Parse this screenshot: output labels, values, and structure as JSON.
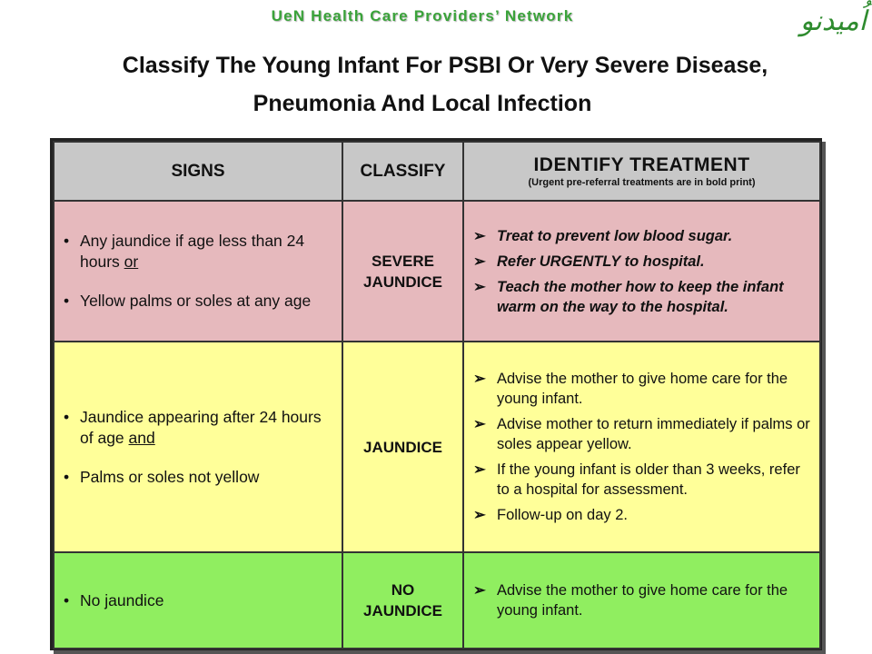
{
  "header": {
    "org": "UeN Health Care Providers’ Network",
    "logo_text": "اُمیدنو"
  },
  "title": {
    "line1": "Classify The Young Infant For PSBI Or Very Severe Disease,",
    "line2": "Pneumonia And Local Infection"
  },
  "table": {
    "headers": {
      "signs": "SIGNS",
      "classify": "CLASSIFY",
      "treatment": "IDENTIFY TREATMENT",
      "treatment_note": "(Urgent pre-referral treatments are in bold print)"
    },
    "rows": [
      {
        "color": "#e6b9bd",
        "signs": [
          {
            "text": "Any jaundice if age less than 24 hours",
            "conj": "or"
          },
          {
            "text": "Yellow palms or soles at any age",
            "conj": ""
          }
        ],
        "classify": [
          "SEVERE",
          "JAUNDICE"
        ],
        "treatment": [
          "Treat to prevent low blood sugar.",
          "Refer URGENTLY to hospital.",
          "Teach the mother how to keep the infant warm on the way to the hospital."
        ]
      },
      {
        "color": "#ffff99",
        "signs": [
          {
            "text": "Jaundice appearing after 24 hours of age",
            "conj": "and"
          },
          {
            "text": "Palms or soles not yellow",
            "conj": ""
          }
        ],
        "classify": [
          "JAUNDICE",
          ""
        ],
        "treatment": [
          "Advise the mother to give home care for the young infant.",
          "Advise mother to return immediately if palms or soles appear yellow.",
          "If the young infant is older than 3 weeks, refer to a hospital for assessment.",
          "Follow-up on day 2."
        ]
      },
      {
        "color": "#90ee60",
        "signs": [
          {
            "text": "No jaundice",
            "conj": ""
          }
        ],
        "classify": [
          "NO",
          "JAUNDICE"
        ],
        "treatment": [
          "Advise the mother to give home care for the young infant."
        ]
      }
    ],
    "bullet": "•",
    "arrow": "➢"
  }
}
